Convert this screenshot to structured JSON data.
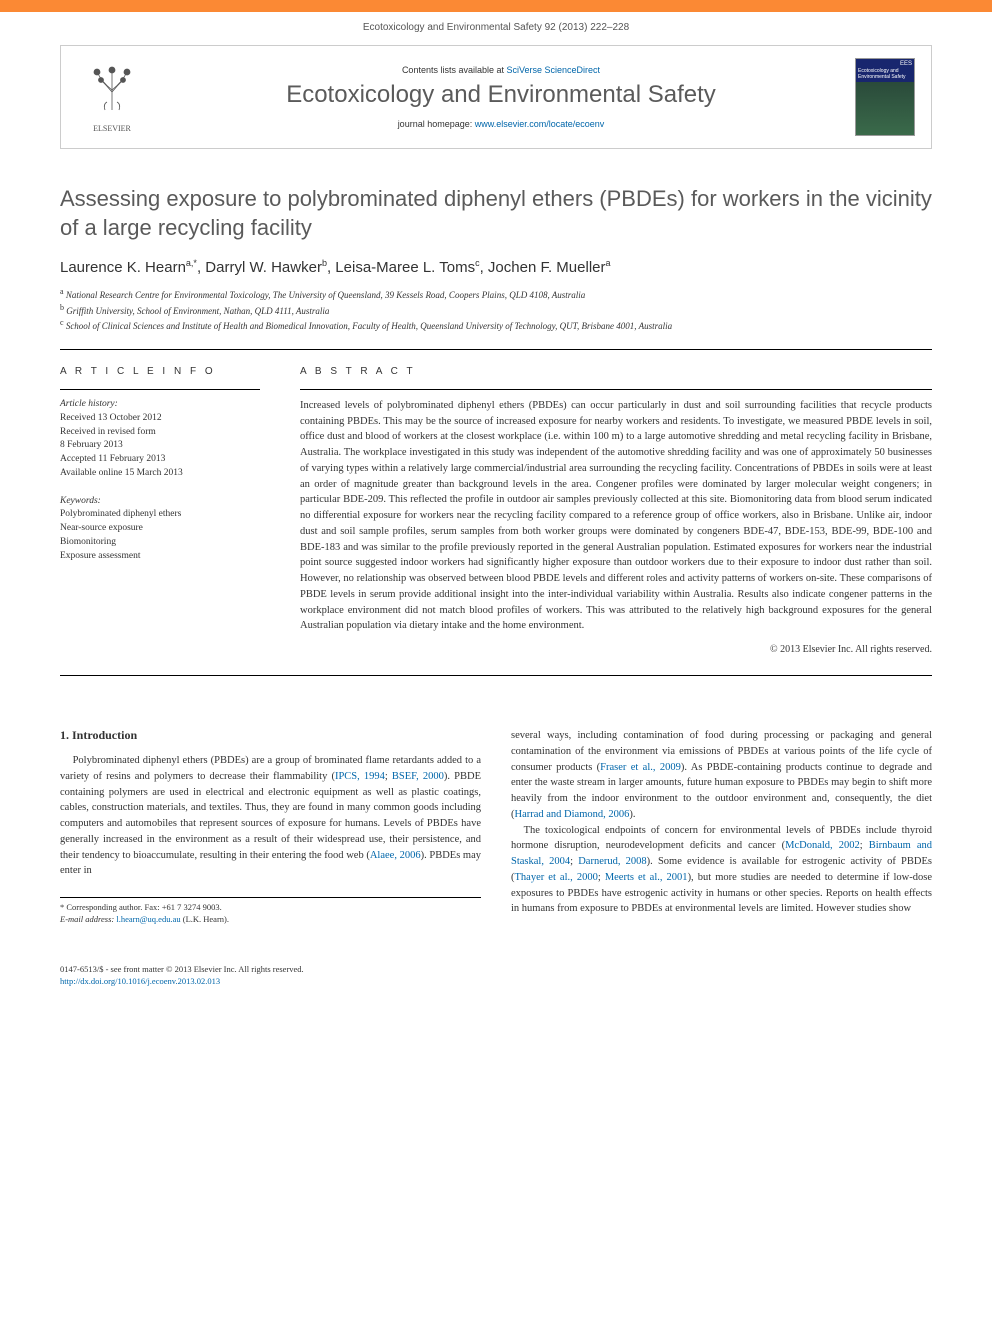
{
  "bar_color": "#fb8934",
  "header": {
    "citation": "Ecotoxicology and Environmental Safety 92 (2013) 222–228",
    "contents_pre": "Contents lists available at ",
    "contents_link": "SciVerse ScienceDirect",
    "journal_name": "Ecotoxicology and Environmental Safety",
    "homepage_pre": "journal homepage: ",
    "homepage_link": "www.elsevier.com/locate/ecoenv",
    "publisher": "ELSEVIER",
    "cover_ees": "EES",
    "cover_title": "Ecotoxicology and Environmental Safety"
  },
  "article": {
    "title": "Assessing exposure to polybrominated diphenyl ethers (PBDEs) for workers in the vicinity of a large recycling facility",
    "authors_html": "Laurence K. Hearn<sup>a,*</sup>, Darryl W. Hawker<sup>b</sup>, Leisa-Maree L. Toms<sup>c</sup>, Jochen F. Mueller<sup>a</sup>",
    "aff_a": "National Research Centre for Environmental Toxicology, The University of Queensland, 39 Kessels Road, Coopers Plains, QLD 4108, Australia",
    "aff_b": "Griffith University, School of Environment, Nathan, QLD 4111, Australia",
    "aff_c": "School of Clinical Sciences and Institute of Health and Biomedical Innovation, Faculty of Health, Queensland University of Technology, QUT, Brisbane 4001, Australia"
  },
  "info": {
    "heading": "A R T I C L E  I N F O",
    "history_label": "Article history:",
    "received": "Received 13 October 2012",
    "revised1": "Received in revised form",
    "revised2": "8 February 2013",
    "accepted": "Accepted 11 February 2013",
    "online": "Available online 15 March 2013",
    "keywords_label": "Keywords:",
    "kw1": "Polybrominated diphenyl ethers",
    "kw2": "Near-source exposure",
    "kw3": "Biomonitoring",
    "kw4": "Exposure assessment"
  },
  "abstract": {
    "heading": "A B S T R A C T",
    "text": "Increased levels of polybrominated diphenyl ethers (PBDEs) can occur particularly in dust and soil surrounding facilities that recycle products containing PBDEs. This may be the source of increased exposure for nearby workers and residents. To investigate, we measured PBDE levels in soil, office dust and blood of workers at the closest workplace (i.e. within 100 m) to a large automotive shredding and metal recycling facility in Brisbane, Australia. The workplace investigated in this study was independent of the automotive shredding facility and was one of approximately 50 businesses of varying types within a relatively large commercial/industrial area surrounding the recycling facility. Concentrations of PBDEs in soils were at least an order of magnitude greater than background levels in the area. Congener profiles were dominated by larger molecular weight congeners; in particular BDE-209. This reflected the profile in outdoor air samples previously collected at this site. Biomonitoring data from blood serum indicated no differential exposure for workers near the recycling facility compared to a reference group of office workers, also in Brisbane. Unlike air, indoor dust and soil sample profiles, serum samples from both worker groups were dominated by congeners BDE-47, BDE-153, BDE-99, BDE-100 and BDE-183 and was similar to the profile previously reported in the general Australian population. Estimated exposures for workers near the industrial point source suggested indoor workers had significantly higher exposure than outdoor workers due to their exposure to indoor dust rather than soil. However, no relationship was observed between blood PBDE levels and different roles and activity patterns of workers on-site. These comparisons of PBDE levels in serum provide additional insight into the inter-individual variability within Australia. Results also indicate congener patterns in the workplace environment did not match blood profiles of workers. This was attributed to the relatively high background exposures for the general Australian population via dietary intake and the home environment.",
    "copyright": "© 2013 Elsevier Inc. All rights reserved."
  },
  "body": {
    "section_no": "1.",
    "section_title": "Introduction",
    "left_para": "Polybrominated diphenyl ethers (PBDEs) are a group of brominated flame retardants added to a variety of resins and polymers to decrease their flammability (IPCS, 1994; BSEF, 2000). PBDE containing polymers are used in electrical and electronic equipment as well as plastic coatings, cables, construction materials, and textiles. Thus, they are found in many common goods including computers and automobiles that represent sources of exposure for humans. Levels of PBDEs have generally increased in the environment as a result of their widespread use, their persistence, and their tendency to bioaccumulate, resulting in their entering the food web (Alaee, 2006). PBDEs may enter in",
    "left_links": [
      "IPCS, 1994",
      "BSEF, 2000",
      "Alaee, 2006"
    ],
    "right_para1": "several ways, including contamination of food during processing or packaging and general contamination of the environment via emissions of PBDEs at various points of the life cycle of consumer products (Fraser et al., 2009). As PBDE-containing products continue to degrade and enter the waste stream in larger amounts, future human exposure to PBDEs may begin to shift more heavily from the indoor environment to the outdoor environment and, consequently, the diet (Harrad and Diamond, 2006).",
    "right_para2": "The toxicological endpoints of concern for environmental levels of PBDEs include thyroid hormone disruption, neurodevelopment deficits and cancer (McDonald, 2002; Birnbaum and Staskal, 2004; Darnerud, 2008). Some evidence is available for estrogenic activity of PBDEs (Thayer et al., 2000; Meerts et al., 2001), but more studies are needed to determine if low-dose exposures to PBDEs have estrogenic activity in humans or other species. Reports on health effects in humans from exposure to PBDEs at environmental levels are limited. However studies show",
    "right_links": [
      "Fraser et al., 2009",
      "Harrad and Diamond, 2006",
      "McDonald, 2002",
      "Birnbaum and Staskal, 2004",
      "Darnerud, 2008",
      "Thayer et al., 2000",
      "Meerts et al., 2001"
    ]
  },
  "footnotes": {
    "corr": "* Corresponding author. Fax: +61 7 3274 9003.",
    "email_label": "E-mail address:",
    "email": "l.hearn@uq.edu.au",
    "email_name": "(L.K. Hearn)."
  },
  "doi": {
    "line1": "0147-6513/$ - see front matter © 2013 Elsevier Inc. All rights reserved.",
    "line2": "http://dx.doi.org/10.1016/j.ecoenv.2013.02.013"
  }
}
